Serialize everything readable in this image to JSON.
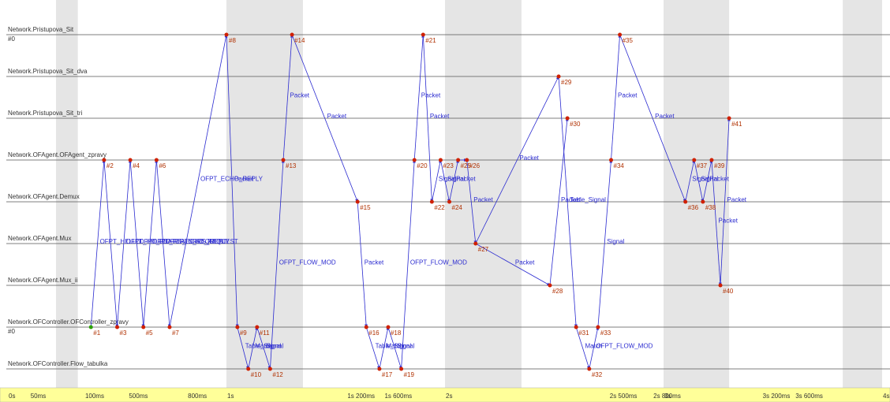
{
  "lanes": [
    {
      "label": "Network.Pristupova_Sit",
      "sub": "#0"
    },
    {
      "label": "Network.Pristupova_Sit_dva",
      "sub": ""
    },
    {
      "label": "Network.Pristupova_Sit_tri",
      "sub": ""
    },
    {
      "label": "Network.OFAgent.OFAgent_zpravy",
      "sub": ""
    },
    {
      "label": "Network.OFAgent.Demux",
      "sub": ""
    },
    {
      "label": "Network.OFAgent.Mux",
      "sub": ""
    },
    {
      "label": "Network.OFAgent.Mux_ii",
      "sub": ""
    },
    {
      "label": "Network.OFController.OFController_zpravy",
      "sub": "#0"
    },
    {
      "label": "Network.OFController.Flow_tabulka",
      "sub": ""
    }
  ],
  "events": [
    {
      "id": "#1",
      "lane": 7,
      "t": 0.38
    },
    {
      "id": "#2",
      "lane": 3,
      "t": 0.44
    },
    {
      "id": "#3",
      "lane": 7,
      "t": 0.5
    },
    {
      "id": "#4",
      "lane": 3,
      "t": 0.56
    },
    {
      "id": "#5",
      "lane": 7,
      "t": 0.62
    },
    {
      "id": "#6",
      "lane": 3,
      "t": 0.68
    },
    {
      "id": "#7",
      "lane": 7,
      "t": 0.74
    },
    {
      "id": "#8",
      "lane": 0,
      "t": 1.0
    },
    {
      "id": "#9",
      "lane": 7,
      "t": 1.05
    },
    {
      "id": "#10",
      "lane": 8,
      "t": 1.1
    },
    {
      "id": "#11",
      "lane": 7,
      "t": 1.14
    },
    {
      "id": "#12",
      "lane": 8,
      "t": 1.2
    },
    {
      "id": "#13",
      "lane": 3,
      "t": 1.26
    },
    {
      "id": "#14",
      "lane": 0,
      "t": 1.3
    },
    {
      "id": "#15",
      "lane": 4,
      "t": 1.6
    },
    {
      "id": "#16",
      "lane": 7,
      "t": 1.64
    },
    {
      "id": "#17",
      "lane": 8,
      "t": 1.7
    },
    {
      "id": "#18",
      "lane": 7,
      "t": 1.74
    },
    {
      "id": "#19",
      "lane": 8,
      "t": 1.8
    },
    {
      "id": "#20",
      "lane": 3,
      "t": 1.86
    },
    {
      "id": "#21",
      "lane": 0,
      "t": 1.9
    },
    {
      "id": "#22",
      "lane": 4,
      "t": 1.94
    },
    {
      "id": "#23",
      "lane": 3,
      "t": 1.98
    },
    {
      "id": "#24",
      "lane": 4,
      "t": 2.02
    },
    {
      "id": "#25",
      "lane": 3,
      "t": 2.06
    },
    {
      "id": "#26",
      "lane": 3,
      "t": 2.1
    },
    {
      "id": "#27",
      "lane": 5,
      "t": 2.14
    },
    {
      "id": "#28",
      "lane": 6,
      "t": 2.48
    },
    {
      "id": "#29",
      "lane": 1,
      "t": 2.52
    },
    {
      "id": "#30",
      "lane": 2,
      "t": 2.56
    },
    {
      "id": "#31",
      "lane": 7,
      "t": 2.6
    },
    {
      "id": "#32",
      "lane": 8,
      "t": 2.66
    },
    {
      "id": "#33",
      "lane": 7,
      "t": 2.7
    },
    {
      "id": "#34",
      "lane": 3,
      "t": 2.76
    },
    {
      "id": "#35",
      "lane": 0,
      "t": 2.8
    },
    {
      "id": "#36",
      "lane": 4,
      "t": 3.1
    },
    {
      "id": "#37",
      "lane": 3,
      "t": 3.14
    },
    {
      "id": "#38",
      "lane": 4,
      "t": 3.18
    },
    {
      "id": "#39",
      "lane": 3,
      "t": 3.22
    },
    {
      "id": "#40",
      "lane": 6,
      "t": 3.26
    },
    {
      "id": "#41",
      "lane": 2,
      "t": 3.3
    }
  ],
  "messages": [
    {
      "from": 0,
      "to": 1,
      "label": "OFPT_HELLO"
    },
    {
      "from": 1,
      "to": 2,
      "label": ""
    },
    {
      "from": 2,
      "to": 3,
      "label": "OFPT_HELLO"
    },
    {
      "from": 3,
      "to": 4,
      "label": "OFPT_FEATURES_REQUEST"
    },
    {
      "from": 4,
      "to": 5,
      "label": "OFPT_FEATURES_REPLY"
    },
    {
      "from": 5,
      "to": 6,
      "label": "OFPT_ECHO_REQUEST"
    },
    {
      "from": 6,
      "to": 7,
      "label": "OFPT_ECHO_REPLY"
    },
    {
      "from": 7,
      "to": 8,
      "label": "Packet"
    },
    {
      "from": 8,
      "to": 9,
      "label": "Table_Signal"
    },
    {
      "from": 9,
      "to": 10,
      "label": "Match"
    },
    {
      "from": 10,
      "to": 11,
      "label": "Signal"
    },
    {
      "from": 11,
      "to": 12,
      "label": "OFPT_FLOW_MOD"
    },
    {
      "from": 12,
      "to": 13,
      "label": "Packet"
    },
    {
      "from": 13,
      "to": 14,
      "label": "Packet"
    },
    {
      "from": 14,
      "to": 15,
      "label": "Packet"
    },
    {
      "from": 15,
      "to": 16,
      "label": "Table_Signal"
    },
    {
      "from": 16,
      "to": 17,
      "label": "Match"
    },
    {
      "from": 17,
      "to": 18,
      "label": "Signal"
    },
    {
      "from": 18,
      "to": 19,
      "label": "OFPT_FLOW_MOD"
    },
    {
      "from": 19,
      "to": 20,
      "label": "Packet"
    },
    {
      "from": 20,
      "to": 21,
      "label": "Packet"
    },
    {
      "from": 21,
      "to": 22,
      "label": "Signal"
    },
    {
      "from": 22,
      "to": 23,
      "label": "Signal"
    },
    {
      "from": 23,
      "to": 24,
      "label": "Packet"
    },
    {
      "from": 24,
      "to": 25,
      "label": ""
    },
    {
      "from": 25,
      "to": 26,
      "label": "Packet"
    },
    {
      "from": 26,
      "to": 27,
      "label": "Packet"
    },
    {
      "from": 26,
      "to": 28,
      "label": "Packet"
    },
    {
      "from": 27,
      "to": 29,
      "label": "Packet"
    },
    {
      "from": 28,
      "to": 30,
      "label": "Table_Signal"
    },
    {
      "from": 30,
      "to": 31,
      "label": "Match"
    },
    {
      "from": 31,
      "to": 32,
      "label": "OFPT_FLOW_MOD"
    },
    {
      "from": 32,
      "to": 33,
      "label": "Signal"
    },
    {
      "from": 33,
      "to": 34,
      "label": "Packet"
    },
    {
      "from": 34,
      "to": 35,
      "label": "Packet"
    },
    {
      "from": 35,
      "to": 36,
      "label": "Signal"
    },
    {
      "from": 36,
      "to": 37,
      "label": "Signal"
    },
    {
      "from": 37,
      "to": 38,
      "label": "Packet"
    },
    {
      "from": 38,
      "to": 39,
      "label": "Packet"
    },
    {
      "from": 39,
      "to": 40,
      "label": "Packet"
    }
  ],
  "timeline_ticks": [
    {
      "t": 0.0,
      "label": "0s"
    },
    {
      "t": 0.1,
      "label": "50ms"
    },
    {
      "t": 0.35,
      "label": "100ms"
    },
    {
      "t": 0.55,
      "label": "500ms"
    },
    {
      "t": 0.82,
      "label": "800ms"
    },
    {
      "t": 1.0,
      "label": "1s"
    },
    {
      "t": 1.55,
      "label": "1s 200ms"
    },
    {
      "t": 1.72,
      "label": "1s 600ms"
    },
    {
      "t": 2.0,
      "label": "2s"
    },
    {
      "t": 2.75,
      "label": "2s 500ms"
    },
    {
      "t": 2.95,
      "label": "2s 800ms"
    },
    {
      "t": 3.0,
      "label": "3s"
    },
    {
      "t": 3.45,
      "label": "3s 200ms"
    },
    {
      "t": 3.6,
      "label": "3s 600ms"
    },
    {
      "t": 4.0,
      "label": "4s"
    }
  ],
  "shaded_bands": [
    {
      "from": 0.22,
      "to": 0.32
    },
    {
      "from": 1.0,
      "to": 1.35
    },
    {
      "from": 2.0,
      "to": 2.35
    },
    {
      "from": 3.0,
      "to": 3.3
    },
    {
      "from": 3.82,
      "to": 4.0
    }
  ],
  "colors": {
    "message_line": "#2b2bd0",
    "event_marker": "#d02000",
    "start_marker": "#2aa000",
    "lane_line": "#555555",
    "band": "#e5e5e5",
    "timeline_bg": "#ffff99"
  }
}
